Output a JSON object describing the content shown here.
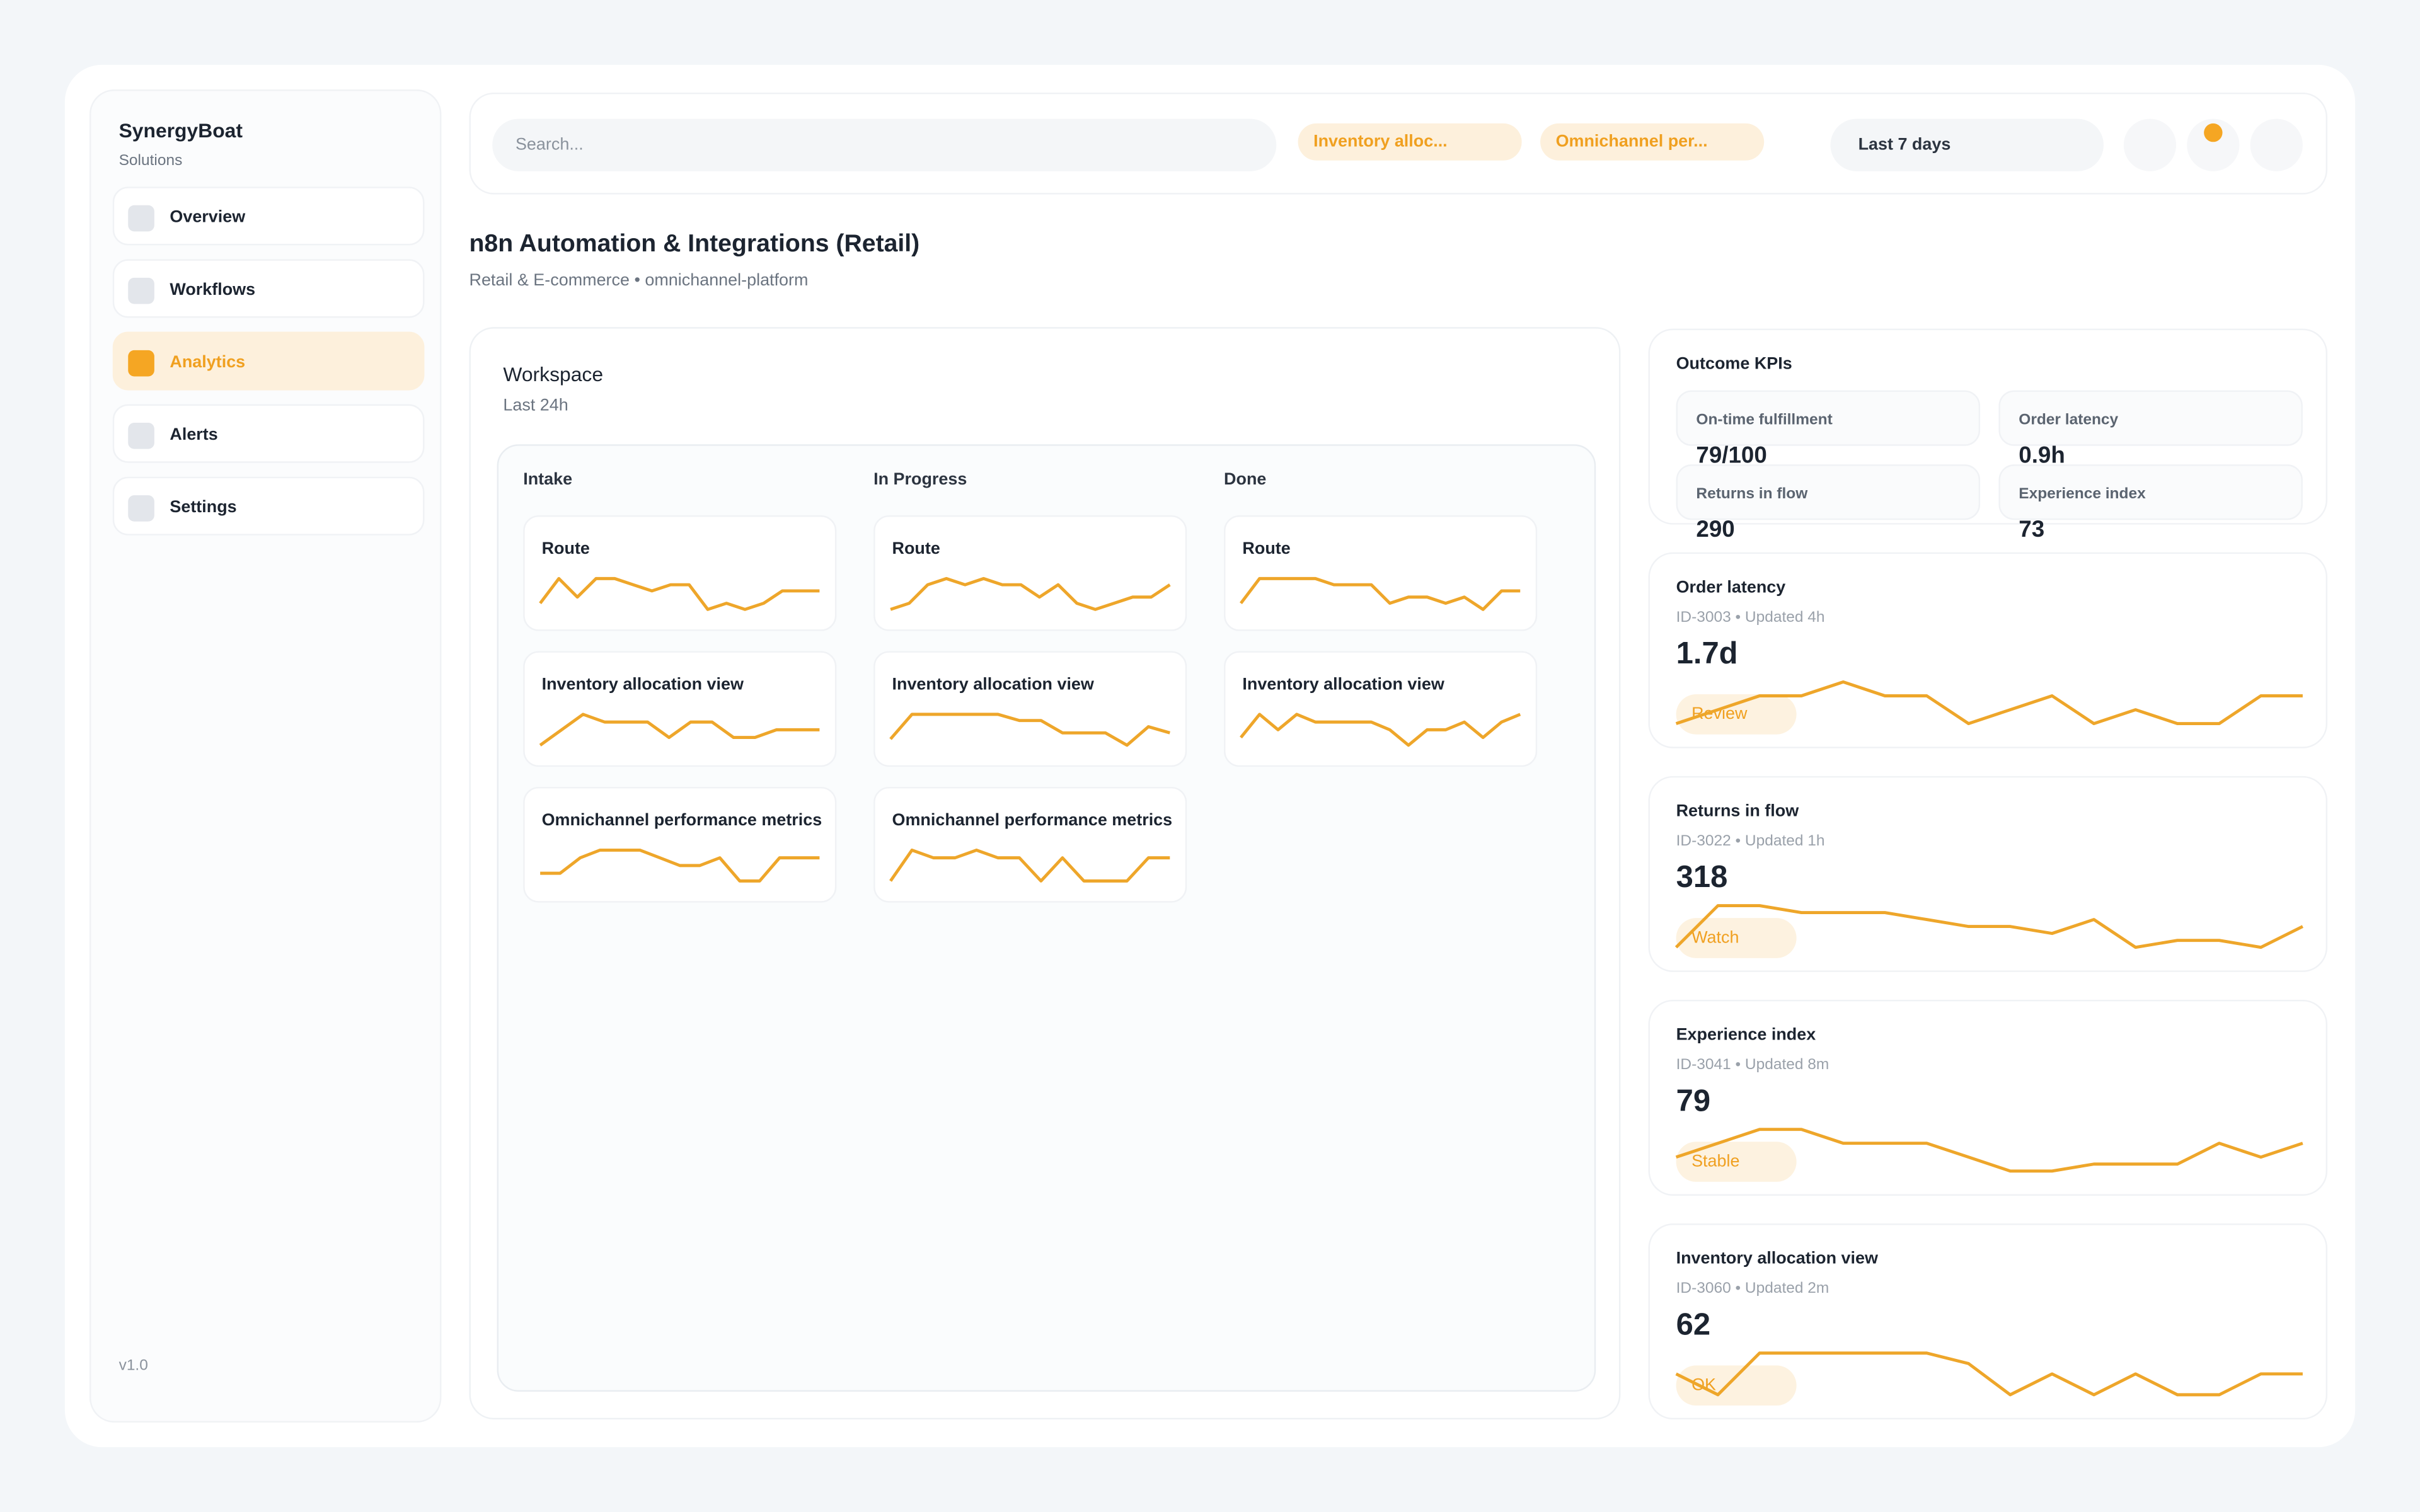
{
  "sidebar": {
    "brand": "SynergyBoat",
    "subtitle": "Solutions",
    "nav": [
      "Overview",
      "Workflows",
      "Analytics",
      "Alerts",
      "Settings"
    ],
    "version": "v1.0"
  },
  "topbar": {
    "search_placeholder": "Search...",
    "chips": [
      "Inventory alloc...",
      "Omnichannel per..."
    ],
    "range": "Last 7 days"
  },
  "header": {
    "title": "n8n Automation & Integrations (Retail)",
    "subtitle": "Retail & E-commerce • omnichannel-platform"
  },
  "workspace": {
    "title": "Workspace",
    "subtitle": "Last 24h",
    "columns": [
      {
        "name": "Intake",
        "cards": [
          {
            "title": "Route",
            "spark": [
              3,
              7,
              4,
              7,
              7,
              6,
              5,
              6,
              6,
              2,
              3,
              2,
              3,
              5,
              5,
              5
            ]
          },
          {
            "title": "Inventory allocation view",
            "spark": [
              2,
              4,
              6,
              5,
              5,
              5,
              3,
              5,
              5,
              3,
              3,
              4,
              4,
              4
            ]
          },
          {
            "title": "Omnichannel performance metrics",
            "spark": [
              3,
              3,
              5,
              6,
              6,
              6,
              5,
              4,
              4,
              5,
              2,
              2,
              5,
              5,
              5
            ]
          }
        ]
      },
      {
        "name": "In Progress",
        "cards": [
          {
            "title": "Route",
            "spark": [
              2,
              3,
              6,
              7,
              6,
              7,
              6,
              6,
              4,
              6,
              3,
              2,
              3,
              4,
              4,
              6
            ]
          },
          {
            "title": "Inventory allocation view",
            "spark": [
              2,
              6,
              6,
              6,
              6,
              6,
              5,
              5,
              3,
              3,
              3,
              1,
              4,
              3
            ]
          },
          {
            "title": "Omnichannel performance metrics",
            "spark": [
              2,
              6,
              5,
              5,
              6,
              5,
              5,
              2,
              5,
              2,
              2,
              2,
              5,
              5
            ]
          }
        ]
      },
      {
        "name": "Done",
        "cards": [
          {
            "title": "Route",
            "spark": [
              2,
              6,
              6,
              6,
              6,
              5,
              5,
              5,
              2,
              3,
              3,
              2,
              3,
              1,
              4,
              4
            ]
          },
          {
            "title": "Inventory allocation view",
            "spark": [
              2,
              5,
              3,
              5,
              4,
              4,
              4,
              4,
              3,
              1,
              3,
              3,
              4,
              2,
              4,
              5
            ]
          }
        ]
      }
    ]
  },
  "kpis": {
    "title": "Outcome KPIs",
    "items": [
      {
        "label": "On-time fulfillment",
        "value": "79/100"
      },
      {
        "label": "Order latency",
        "value": "0.9h"
      },
      {
        "label": "Returns in flow",
        "value": "290"
      },
      {
        "label": "Experience index",
        "value": "73"
      }
    ]
  },
  "metrics": [
    {
      "title": "Order latency",
      "meta": "ID-3003 • Updated 4h",
      "value": "1.7d",
      "status": "Review",
      "spark": [
        4,
        5,
        6,
        6,
        7,
        6,
        6,
        4,
        5,
        6,
        4,
        5,
        4,
        4,
        6,
        6
      ]
    },
    {
      "title": "Returns in flow",
      "meta": "ID-3022 • Updated 1h",
      "value": "318",
      "status": "Watch",
      "spark": [
        3,
        6,
        6,
        5.5,
        5.5,
        5.5,
        5,
        4.5,
        4.5,
        4,
        5,
        3,
        3.5,
        3.5,
        3,
        4.5
      ]
    },
    {
      "title": "Experience index",
      "meta": "ID-3041 • Updated 8m",
      "value": "79",
      "status": "Stable",
      "spark": [
        4,
        5,
        6,
        6,
        5,
        5,
        5,
        4,
        3,
        3,
        3.5,
        3.5,
        3.5,
        5,
        4,
        5
      ]
    },
    {
      "title": "Inventory allocation view",
      "meta": "ID-3060 • Updated 2m",
      "value": "62",
      "status": "OK",
      "spark": [
        5,
        3,
        7,
        7,
        7,
        7,
        7,
        6,
        3,
        5,
        3,
        5,
        3,
        3,
        5,
        5
      ]
    }
  ]
}
